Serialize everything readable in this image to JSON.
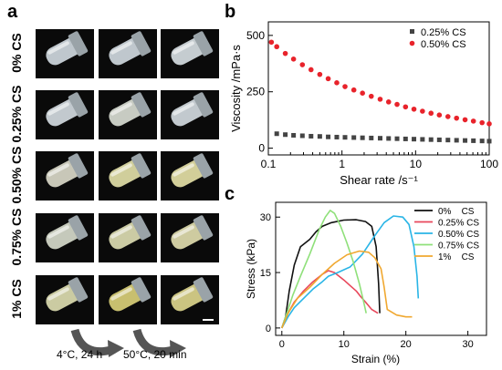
{
  "panel_a": {
    "letter": "a",
    "rows": [
      "0% CS",
      "0.25% CS",
      "0.50% CS",
      "0.75% CS",
      "1% CS"
    ],
    "arrow_labels": [
      "4°C, 24 h",
      "50°C, 20 min"
    ]
  },
  "panel_b": {
    "letter": "b",
    "chart_data": {
      "type": "scatter",
      "xlabel": "Shear rate /s⁻¹",
      "ylabel": "Viscosity /mPa·s",
      "xscale": "log",
      "xlim": [
        0.1,
        100
      ],
      "ylim": [
        -30,
        560
      ],
      "x_ticks": [
        "0.1",
        "1",
        "10",
        "100"
      ],
      "y_ticks": [
        "0",
        "250",
        "500"
      ],
      "legend_position": "top-right",
      "series": [
        {
          "name": "0.25% CS",
          "color": "#444444",
          "marker": "square",
          "x": [
            0.13,
            0.17,
            0.22,
            0.29,
            0.38,
            0.5,
            0.65,
            0.85,
            1.1,
            1.45,
            1.9,
            2.5,
            3.3,
            4.3,
            5.6,
            7.3,
            9.5,
            12.4,
            16.2,
            21,
            27.5,
            36,
            47,
            61,
            80,
            100
          ],
          "y": [
            64,
            60,
            57,
            55,
            53,
            52,
            50,
            49,
            48,
            47,
            46,
            45,
            44,
            43,
            42,
            41,
            40,
            39,
            38,
            37,
            36,
            35,
            34,
            33,
            32,
            31
          ]
        },
        {
          "name": "0.50% CS",
          "color": "#e8232b",
          "marker": "circle",
          "x": [
            0.11,
            0.13,
            0.17,
            0.22,
            0.29,
            0.38,
            0.5,
            0.65,
            0.85,
            1.1,
            1.45,
            1.9,
            2.5,
            3.3,
            4.3,
            5.6,
            7.3,
            9.5,
            12.4,
            16.2,
            21,
            27.5,
            36,
            47,
            61,
            80,
            100
          ],
          "y": [
            470,
            450,
            420,
            395,
            370,
            348,
            327,
            308,
            290,
            273,
            258,
            244,
            230,
            217,
            205,
            194,
            183,
            173,
            164,
            155,
            147,
            140,
            133,
            126,
            120,
            113,
            108
          ]
        }
      ]
    }
  },
  "panel_c": {
    "letter": "c",
    "chart_data": {
      "type": "line",
      "xlabel": "Strain (%)",
      "ylabel": "Stress (kPa)",
      "xlim": [
        -1,
        33
      ],
      "ylim": [
        -2,
        34
      ],
      "x_ticks": [
        "0",
        "10",
        "20",
        "30"
      ],
      "y_ticks": [
        "0",
        "15",
        "30"
      ],
      "legend_position": "top-right",
      "series": [
        {
          "name": "0%    CS",
          "color": "#111111",
          "points": [
            [
              0,
              0
            ],
            [
              0.6,
              3
            ],
            [
              1.2,
              10
            ],
            [
              2,
              17
            ],
            [
              3,
              22
            ],
            [
              4.5,
              24
            ],
            [
              5.5,
              26
            ],
            [
              6.5,
              27.5
            ],
            [
              8,
              28.5
            ],
            [
              10,
              29.2
            ],
            [
              12,
              29.3
            ],
            [
              13.5,
              28.8
            ],
            [
              14.5,
              27.5
            ],
            [
              15.2,
              22
            ],
            [
              15.6,
              12
            ],
            [
              15.8,
              4
            ]
          ]
        },
        {
          "name": "0.25% CS",
          "color": "#e8475b",
          "points": [
            [
              0,
              0
            ],
            [
              1,
              4
            ],
            [
              2,
              7
            ],
            [
              3.5,
              10
            ],
            [
              5,
              12.5
            ],
            [
              6.5,
              14.5
            ],
            [
              7.5,
              15.5
            ],
            [
              8.5,
              15
            ],
            [
              10,
              13
            ],
            [
              11,
              11.5
            ],
            [
              12,
              10
            ],
            [
              12.7,
              8.5
            ],
            [
              13.5,
              7
            ],
            [
              14.5,
              5
            ],
            [
              15.5,
              4
            ]
          ]
        },
        {
          "name": "0.50% CS",
          "color": "#2ab5e6",
          "points": [
            [
              0,
              0
            ],
            [
              1,
              3
            ],
            [
              2,
              5.5
            ],
            [
              3.5,
              8
            ],
            [
              5,
              10.5
            ],
            [
              6.5,
              12.5
            ],
            [
              7.5,
              14
            ],
            [
              9,
              15
            ],
            [
              11,
              16.5
            ],
            [
              13,
              20
            ],
            [
              15,
              25
            ],
            [
              16.5,
              28.5
            ],
            [
              18,
              30.3
            ],
            [
              19.5,
              30
            ],
            [
              20.5,
              28
            ],
            [
              21.3,
              22
            ],
            [
              21.8,
              14
            ],
            [
              22,
              8
            ]
          ]
        },
        {
          "name": "0.75% CS",
          "color": "#8fe07a",
          "points": [
            [
              0,
              0
            ],
            [
              0.8,
              4
            ],
            [
              1.8,
              9
            ],
            [
              3,
              14
            ],
            [
              4.5,
              20
            ],
            [
              6,
              26.5
            ],
            [
              7,
              30
            ],
            [
              7.8,
              31.8
            ],
            [
              8.5,
              31
            ],
            [
              9.5,
              27.5
            ],
            [
              10.5,
              23
            ],
            [
              11.5,
              18
            ],
            [
              12.5,
              12
            ],
            [
              13.2,
              7
            ],
            [
              13.6,
              4
            ]
          ]
        },
        {
          "name": "1%    CS",
          "color": "#f0a830",
          "points": [
            [
              0,
              0
            ],
            [
              1,
              4
            ],
            [
              2.5,
              8
            ],
            [
              4.5,
              11
            ],
            [
              6.5,
              14.5
            ],
            [
              8.5,
              17.5
            ],
            [
              10.5,
              19.8
            ],
            [
              12.5,
              20.8
            ],
            [
              14,
              20.5
            ],
            [
              15,
              19
            ],
            [
              16,
              16
            ],
            [
              16.5,
              11
            ],
            [
              17,
              5
            ],
            [
              18.5,
              3.5
            ],
            [
              20,
              3
            ],
            [
              21,
              3
            ]
          ]
        }
      ]
    }
  }
}
